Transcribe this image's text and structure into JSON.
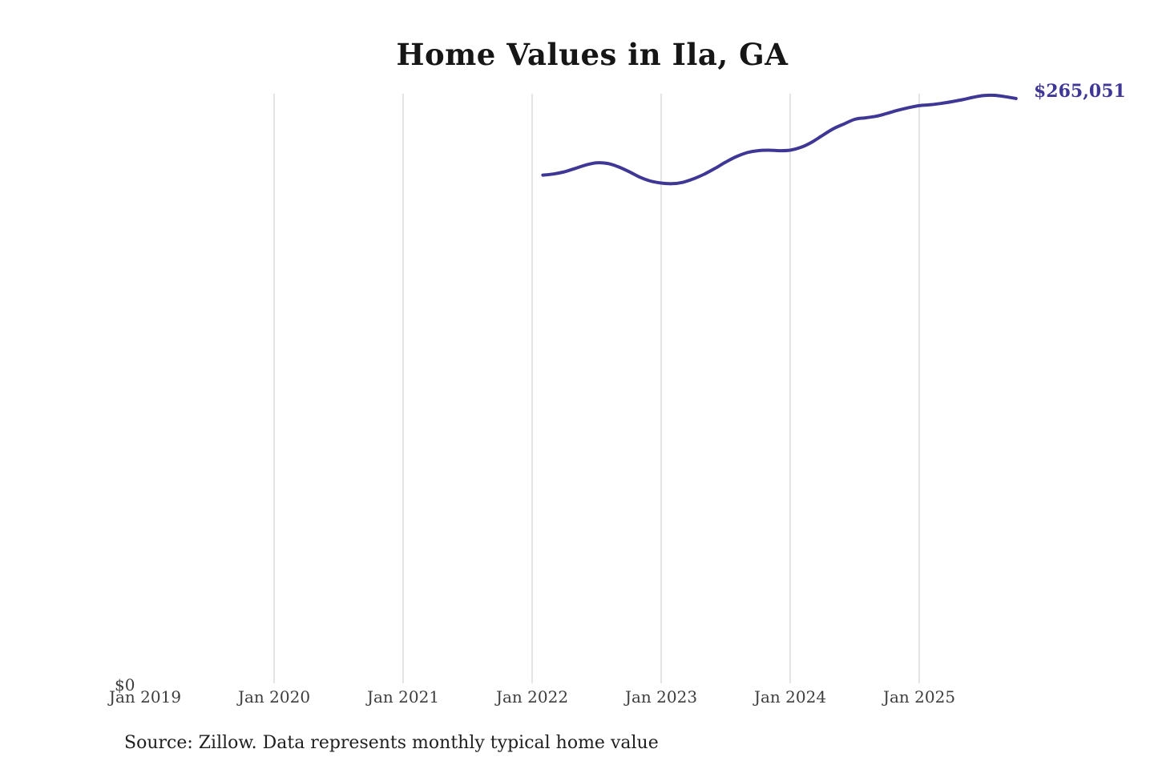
{
  "title": "Home Values in Ila, GA",
  "latest_value_label": "$265,051",
  "y_axis": {
    "zero_label": "$0"
  },
  "x_axis": {
    "ticks": [
      {
        "label": "Jan 2019",
        "gridline": false
      },
      {
        "label": "Jan 2020",
        "gridline": true
      },
      {
        "label": "Jan 2021",
        "gridline": true
      },
      {
        "label": "Jan 2022",
        "gridline": true
      },
      {
        "label": "Jan 2023",
        "gridline": true
      },
      {
        "label": "Jan 2024",
        "gridline": true
      },
      {
        "label": "Jan 2025",
        "gridline": true
      }
    ]
  },
  "source_note": "Source: Zillow. Data represents monthly typical home value",
  "colors": {
    "line": "#3f3795",
    "end_label": "#3f3795",
    "grid": "#c9c9c9",
    "axis_text": "#3d3d3d",
    "title_text": "#161616",
    "source_text": "#1f1f1f"
  },
  "chart_data": {
    "type": "line",
    "title": "Home Values in Ila, GA",
    "unit": "USD",
    "series_name": "Monthly typical home value",
    "start": "2022-02",
    "end": "2025-10",
    "x": [
      "2022-02",
      "2022-03",
      "2022-04",
      "2022-05",
      "2022-06",
      "2022-07",
      "2022-08",
      "2022-09",
      "2022-10",
      "2022-11",
      "2022-12",
      "2023-01",
      "2023-02",
      "2023-03",
      "2023-04",
      "2023-05",
      "2023-06",
      "2023-07",
      "2023-08",
      "2023-09",
      "2023-10",
      "2023-11",
      "2023-12",
      "2024-01",
      "2024-02",
      "2024-03",
      "2024-04",
      "2024-05",
      "2024-06",
      "2024-07",
      "2024-08",
      "2024-09",
      "2024-10",
      "2024-11",
      "2024-12",
      "2025-01",
      "2025-02",
      "2025-03",
      "2025-04",
      "2025-05",
      "2025-06",
      "2025-07",
      "2025-08",
      "2025-09",
      "2025-10"
    ],
    "values": [
      230300,
      230800,
      231800,
      233300,
      234900,
      235900,
      235600,
      234100,
      231900,
      229400,
      227600,
      226700,
      226400,
      227000,
      228600,
      230700,
      233300,
      236200,
      238700,
      240500,
      241400,
      241600,
      241400,
      241600,
      242900,
      245200,
      248300,
      251300,
      253500,
      255600,
      256300,
      257000,
      258300,
      259700,
      260900,
      261800,
      262200,
      262800,
      263600,
      264500,
      265600,
      266400,
      266500,
      265900,
      265051
    ],
    "end_value": 265051,
    "ylim": [
      0,
      320000
    ],
    "xlim_labels": [
      "Jan 2019",
      "Oct 2025"
    ],
    "grid": "vertical-only",
    "legend": "none",
    "annotations": [
      {
        "text": "$265,051",
        "position": "line-end"
      }
    ]
  }
}
